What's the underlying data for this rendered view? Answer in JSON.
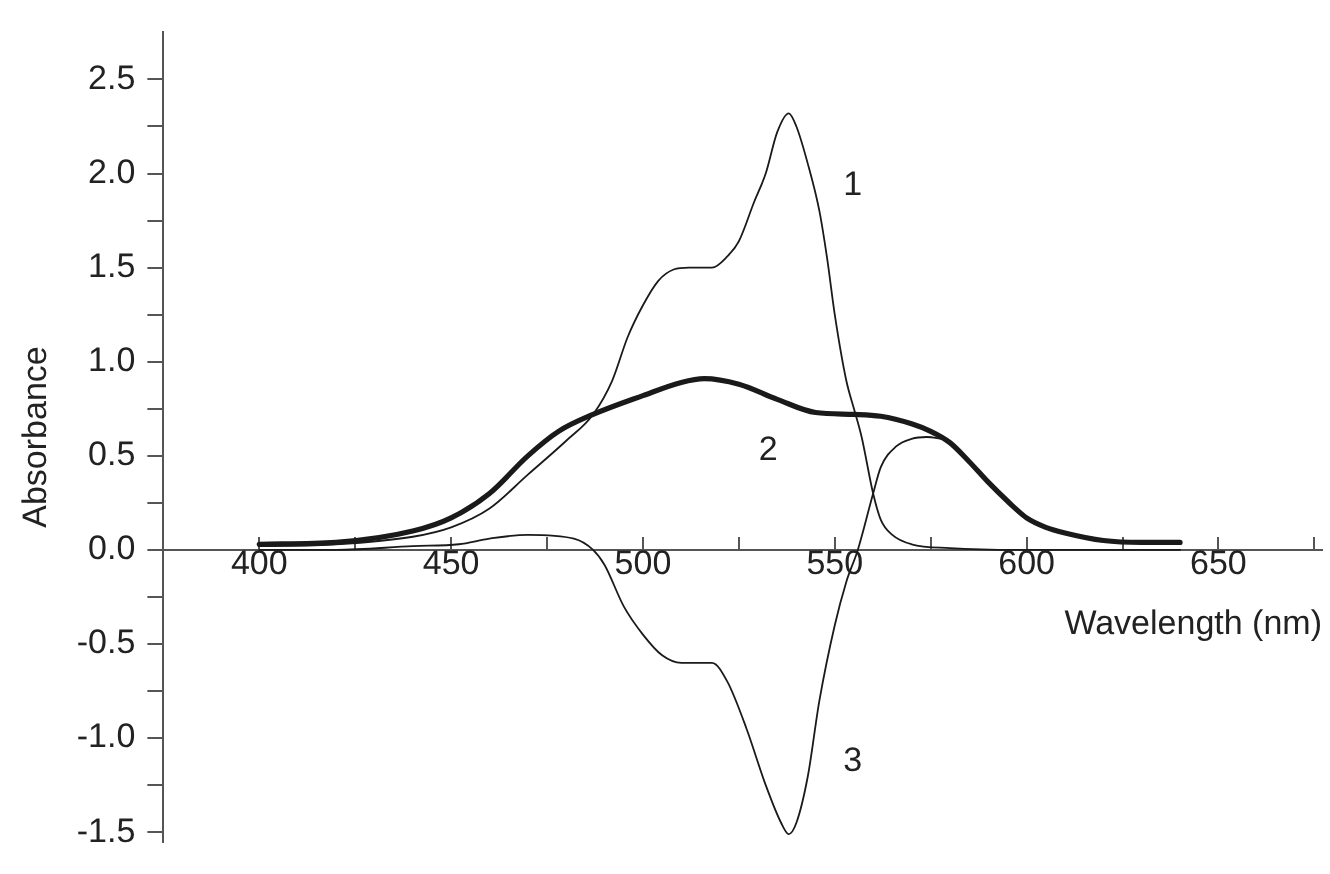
{
  "chart_data": {
    "type": "line",
    "xlabel": "Wavelength (nm)",
    "ylabel": "Absorbance",
    "xlim": [
      375,
      677
    ],
    "ylim": [
      -1.55,
      2.75
    ],
    "xticks": [
      400,
      {
        "value": 425,
        "label": null
      },
      450,
      {
        "value": 475,
        "label": null
      },
      500,
      {
        "value": 525,
        "label": null
      },
      550,
      {
        "value": 575,
        "label": null
      },
      600,
      {
        "value": 625,
        "label": null
      },
      650,
      {
        "value": 675,
        "label": null
      }
    ],
    "yticks": [
      -1.5,
      {
        "value": -1.25,
        "label": null
      },
      {
        "value": -1,
        "label": "-1.0"
      },
      {
        "value": -0.75,
        "label": null
      },
      -0.5,
      {
        "value": -0.25,
        "label": null
      },
      {
        "value": 0,
        "label": "0.0"
      },
      {
        "value": 0.25,
        "label": null
      },
      0.5,
      {
        "value": 0.75,
        "label": null
      },
      {
        "value": 1,
        "label": "1.0"
      },
      {
        "value": 1.25,
        "label": null
      },
      1.5,
      {
        "value": 1.75,
        "label": null
      },
      {
        "value": 2,
        "label": "2.0"
      },
      {
        "value": 2.25,
        "label": null
      },
      2.5
    ],
    "grid": false,
    "legend": false,
    "marker": "none",
    "line_style": "solid",
    "series": [
      {
        "name": "1",
        "color": "#1a1a1a",
        "x": [
          400,
          420,
          440,
          450,
          460,
          470,
          480,
          487,
          492,
          496,
          500,
          504,
          508,
          512,
          518,
          522,
          525,
          529,
          532,
          535,
          538,
          540,
          543,
          546,
          548,
          550,
          553,
          555,
          557,
          560,
          562,
          565,
          570,
          580,
          600,
          640
        ],
        "values": [
          0.02,
          0.03,
          0.07,
          0.12,
          0.22,
          0.4,
          0.58,
          0.72,
          0.9,
          1.13,
          1.3,
          1.43,
          1.49,
          1.5,
          1.5,
          1.56,
          1.64,
          1.85,
          2.0,
          2.22,
          2.32,
          2.25,
          2.05,
          1.8,
          1.55,
          1.25,
          0.9,
          0.75,
          0.6,
          0.3,
          0.16,
          0.08,
          0.03,
          0.01,
          0.0,
          0.0
        ]
      },
      {
        "name": "2",
        "color": "#1a1a1a",
        "x": [
          400,
          420,
          440,
          450,
          460,
          470,
          478,
          487,
          500,
          510,
          516,
          525,
          535,
          545,
          555,
          562,
          570,
          575,
          580,
          585,
          590,
          595,
          600,
          605,
          610,
          620,
          630,
          640
        ],
        "values": [
          0.03,
          0.04,
          0.1,
          0.17,
          0.3,
          0.5,
          0.63,
          0.72,
          0.82,
          0.89,
          0.91,
          0.88,
          0.8,
          0.73,
          0.72,
          0.71,
          0.67,
          0.63,
          0.57,
          0.47,
          0.36,
          0.26,
          0.17,
          0.12,
          0.09,
          0.05,
          0.04,
          0.04
        ]
      },
      {
        "name": "3",
        "color": "#1a1a1a",
        "x": [
          400,
          420,
          440,
          452,
          460,
          470,
          482,
          487,
          490,
          495,
          500,
          505,
          510,
          512,
          518,
          522,
          527,
          532,
          536,
          538,
          540,
          543,
          546,
          550,
          553,
          556,
          560,
          562,
          566,
          570,
          574,
          578
        ],
        "values": [
          0.0,
          0.0,
          0.02,
          0.03,
          0.06,
          0.08,
          0.06,
          0.0,
          -0.08,
          -0.3,
          -0.45,
          -0.56,
          -0.6,
          -0.6,
          -0.6,
          -0.7,
          -0.95,
          -1.25,
          -1.45,
          -1.51,
          -1.45,
          -1.2,
          -0.8,
          -0.4,
          -0.17,
          0.0,
          0.3,
          0.44,
          0.55,
          0.59,
          0.6,
          0.59
        ]
      }
    ]
  }
}
